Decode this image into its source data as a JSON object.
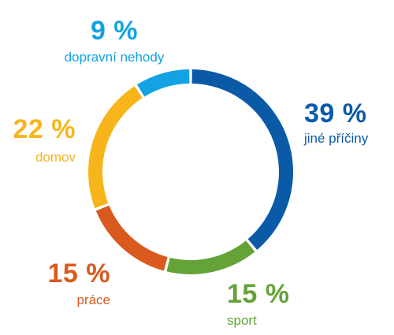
{
  "chart_data": {
    "type": "pie",
    "variant": "donut",
    "title": "",
    "legend": "none",
    "categories": [
      "jiné příčiny",
      "sport",
      "práce",
      "domov",
      "dopravní nehody"
    ],
    "values": [
      39,
      15,
      15,
      22,
      9
    ],
    "value_labels": [
      "39 %",
      "15 %",
      "15 %",
      "22 %",
      "9 %"
    ],
    "colors": [
      "#0b5aa8",
      "#64a338",
      "#d9591f",
      "#f7b51b",
      "#13a3e2"
    ]
  }
}
